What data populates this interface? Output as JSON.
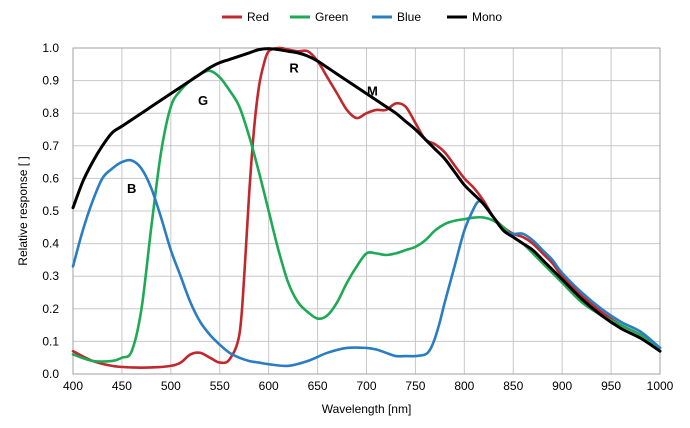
{
  "chart_data": {
    "type": "line",
    "title": "",
    "xlabel": "Wavelength [nm]",
    "ylabel": "Relative response [ ]",
    "xlim": [
      400,
      1000
    ],
    "ylim": [
      0.0,
      1.0
    ],
    "xticks": [
      400,
      450,
      500,
      550,
      600,
      650,
      700,
      750,
      800,
      850,
      900,
      950,
      1000
    ],
    "yticks": [
      "0.0",
      "0.1",
      "0.2",
      "0.3",
      "0.4",
      "0.5",
      "0.6",
      "0.7",
      "0.8",
      "0.9",
      "1.0"
    ],
    "grid": true,
    "legend_position": "top",
    "series": [
      {
        "name": "Red",
        "color": "#c0282d",
        "x": [
          400,
          420,
          440,
          460,
          480,
          500,
          510,
          520,
          530,
          540,
          550,
          560,
          570,
          575,
          580,
          585,
          590,
          595,
          600,
          610,
          620,
          630,
          640,
          650,
          660,
          670,
          680,
          690,
          700,
          710,
          720,
          730,
          740,
          750,
          760,
          770,
          780,
          790,
          800,
          810,
          820,
          830,
          840,
          850,
          860,
          870,
          880,
          890,
          900,
          920,
          940,
          960,
          980,
          1000
        ],
        "y": [
          0.07,
          0.04,
          0.025,
          0.02,
          0.02,
          0.025,
          0.035,
          0.06,
          0.065,
          0.05,
          0.035,
          0.045,
          0.12,
          0.3,
          0.55,
          0.75,
          0.88,
          0.95,
          0.99,
          1.0,
          0.995,
          0.99,
          0.99,
          0.96,
          0.91,
          0.86,
          0.81,
          0.785,
          0.8,
          0.81,
          0.81,
          0.83,
          0.82,
          0.77,
          0.72,
          0.705,
          0.68,
          0.64,
          0.6,
          0.57,
          0.53,
          0.48,
          0.45,
          0.43,
          0.42,
          0.4,
          0.37,
          0.34,
          0.3,
          0.24,
          0.19,
          0.15,
          0.12,
          0.07
        ]
      },
      {
        "name": "Green",
        "color": "#1eaa55",
        "x": [
          400,
          420,
          440,
          450,
          460,
          470,
          480,
          490,
          500,
          510,
          520,
          530,
          540,
          550,
          560,
          570,
          580,
          590,
          600,
          610,
          620,
          630,
          640,
          650,
          660,
          670,
          680,
          690,
          700,
          710,
          720,
          730,
          740,
          750,
          760,
          770,
          780,
          790,
          800,
          810,
          820,
          830,
          840,
          850,
          860,
          870,
          880,
          890,
          900,
          920,
          940,
          960,
          980,
          1000
        ],
        "y": [
          0.06,
          0.04,
          0.04,
          0.05,
          0.07,
          0.2,
          0.45,
          0.68,
          0.82,
          0.87,
          0.9,
          0.92,
          0.93,
          0.91,
          0.87,
          0.82,
          0.73,
          0.62,
          0.5,
          0.38,
          0.28,
          0.22,
          0.19,
          0.17,
          0.18,
          0.22,
          0.28,
          0.33,
          0.37,
          0.37,
          0.365,
          0.37,
          0.38,
          0.39,
          0.41,
          0.44,
          0.46,
          0.47,
          0.475,
          0.48,
          0.48,
          0.47,
          0.45,
          0.42,
          0.4,
          0.37,
          0.34,
          0.31,
          0.28,
          0.22,
          0.18,
          0.15,
          0.12,
          0.08
        ]
      },
      {
        "name": "Blue",
        "color": "#2a7dc3",
        "x": [
          400,
          410,
          420,
          430,
          440,
          450,
          460,
          470,
          480,
          490,
          500,
          510,
          520,
          530,
          540,
          550,
          560,
          570,
          580,
          590,
          600,
          620,
          640,
          660,
          680,
          700,
          710,
          720,
          730,
          740,
          750,
          760,
          765,
          770,
          775,
          780,
          790,
          800,
          810,
          815,
          820,
          830,
          840,
          850,
          860,
          870,
          880,
          890,
          900,
          920,
          940,
          960,
          980,
          1000
        ],
        "y": [
          0.33,
          0.44,
          0.53,
          0.6,
          0.63,
          0.65,
          0.655,
          0.63,
          0.57,
          0.48,
          0.38,
          0.3,
          0.22,
          0.16,
          0.12,
          0.09,
          0.065,
          0.05,
          0.04,
          0.035,
          0.03,
          0.025,
          0.04,
          0.065,
          0.08,
          0.08,
          0.075,
          0.065,
          0.055,
          0.055,
          0.055,
          0.06,
          0.075,
          0.11,
          0.16,
          0.22,
          0.33,
          0.44,
          0.51,
          0.53,
          0.52,
          0.48,
          0.44,
          0.43,
          0.43,
          0.41,
          0.38,
          0.35,
          0.31,
          0.25,
          0.2,
          0.16,
          0.13,
          0.08
        ]
      },
      {
        "name": "Mono",
        "color": "#000000",
        "x": [
          400,
          410,
          420,
          430,
          440,
          450,
          460,
          470,
          480,
          490,
          500,
          510,
          520,
          530,
          540,
          550,
          560,
          570,
          580,
          590,
          600,
          610,
          620,
          630,
          640,
          650,
          660,
          670,
          680,
          690,
          700,
          710,
          720,
          730,
          740,
          750,
          760,
          770,
          780,
          790,
          800,
          810,
          820,
          830,
          840,
          850,
          860,
          870,
          880,
          890,
          900,
          920,
          940,
          960,
          980,
          1000
        ],
        "y": [
          0.51,
          0.59,
          0.65,
          0.7,
          0.74,
          0.76,
          0.78,
          0.8,
          0.82,
          0.84,
          0.86,
          0.88,
          0.9,
          0.92,
          0.94,
          0.955,
          0.965,
          0.975,
          0.985,
          0.995,
          0.998,
          0.995,
          0.99,
          0.985,
          0.975,
          0.96,
          0.94,
          0.92,
          0.9,
          0.88,
          0.86,
          0.84,
          0.82,
          0.8,
          0.775,
          0.75,
          0.72,
          0.69,
          0.66,
          0.62,
          0.58,
          0.55,
          0.52,
          0.48,
          0.44,
          0.42,
          0.4,
          0.38,
          0.35,
          0.32,
          0.29,
          0.23,
          0.18,
          0.14,
          0.11,
          0.07
        ]
      }
    ],
    "annotations": [
      {
        "text": "B",
        "x": 460,
        "y": 0.57
      },
      {
        "text": "G",
        "x": 533,
        "y": 0.84
      },
      {
        "text": "R",
        "x": 626,
        "y": 0.94
      },
      {
        "text": "M",
        "x": 706,
        "y": 0.87
      }
    ]
  }
}
